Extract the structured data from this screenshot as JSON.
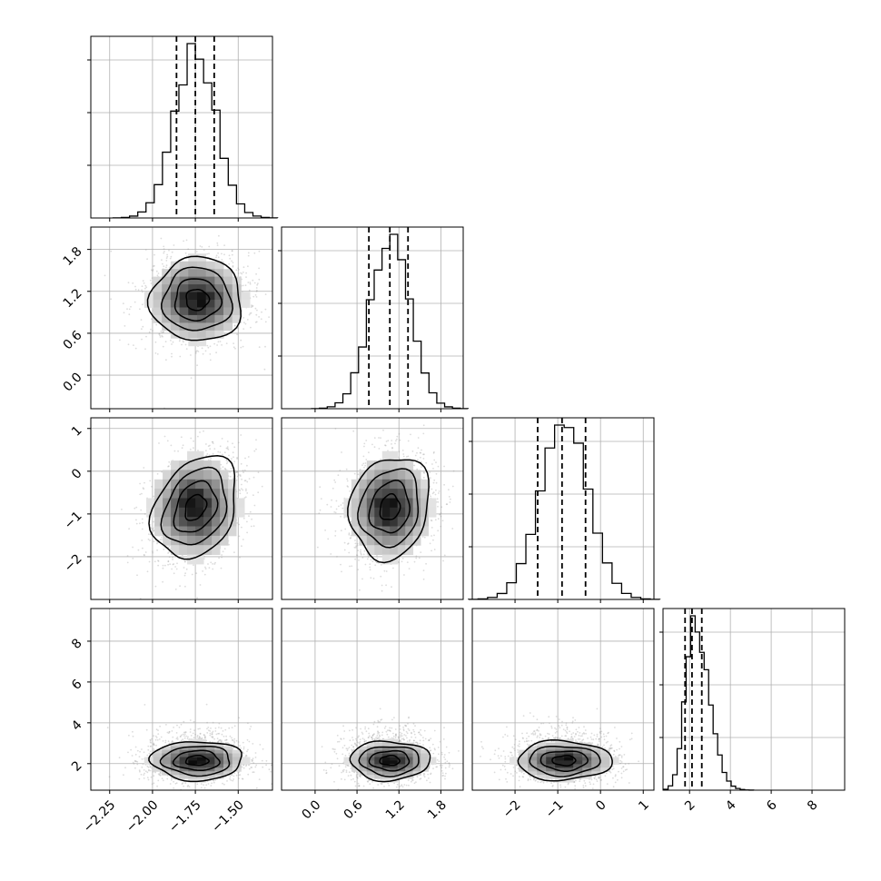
{
  "chart_data": {
    "type": "corner",
    "grid": true,
    "colors": {
      "line": "#000000",
      "grid": "#b0b0b0",
      "scatter": "#9a9a9a",
      "hist_fill": "#ffffff"
    },
    "params": [
      {
        "range": [
          -2.36,
          -1.3
        ],
        "ticks": [
          -2.25,
          -2.0,
          -1.75,
          -1.5
        ],
        "tick_labels": [
          "−2.25",
          "−2.00",
          "−1.75",
          "−1.50"
        ],
        "mean": -1.75,
        "sd": 0.12,
        "quantiles": [
          -1.86,
          -1.75,
          -1.64
        ]
      },
      {
        "range": [
          -0.48,
          2.12
        ],
        "ticks": [
          0.0,
          0.6,
          1.2,
          1.8
        ],
        "tick_labels": [
          "0.0",
          "0.6",
          "1.2",
          "1.8"
        ],
        "mean": 1.07,
        "sd": 0.28,
        "quantiles": [
          0.77,
          1.07,
          1.33
        ]
      },
      {
        "range": [
          -3.0,
          1.25
        ],
        "ticks": [
          -2,
          -1,
          0,
          1
        ],
        "tick_labels": [
          "−2",
          "−1",
          "0",
          "1"
        ],
        "mean": -0.85,
        "sd": 0.56,
        "quantiles": [
          -1.47,
          -0.9,
          -0.35
        ]
      },
      {
        "range": [
          0.7,
          9.6
        ],
        "ticks": [
          2,
          4,
          6,
          8
        ],
        "tick_labels": [
          "2",
          "4",
          "6",
          "8"
        ],
        "mean": 2.2,
        "sd": 0.42,
        "quantiles": [
          1.78,
          2.12,
          2.6
        ]
      }
    ],
    "pairs": [
      {
        "row": 1,
        "col": 0,
        "cx": -1.74,
        "cy": 1.08,
        "rx": 0.14,
        "ry": 0.3,
        "rho": 0.0
      },
      {
        "row": 2,
        "col": 0,
        "cx": -1.75,
        "cy": -0.85,
        "rx": 0.13,
        "ry": 0.6,
        "rho": 0.3
      },
      {
        "row": 2,
        "col": 1,
        "cx": 1.07,
        "cy": -0.85,
        "rx": 0.3,
        "ry": 0.6,
        "rho": 0.15
      },
      {
        "row": 3,
        "col": 0,
        "cx": -1.74,
        "cy": 2.15,
        "rx": 0.14,
        "ry": 0.48,
        "rho": 0.0
      },
      {
        "row": 3,
        "col": 1,
        "cx": 1.07,
        "cy": 2.15,
        "rx": 0.3,
        "ry": 0.48,
        "rho": 0.0
      },
      {
        "row": 3,
        "col": 2,
        "cx": -0.85,
        "cy": 2.15,
        "rx": 0.58,
        "ry": 0.48,
        "rho": 0.0
      }
    ],
    "contour_levels": [
      0.5,
      1.0,
      1.5,
      2.0
    ]
  }
}
